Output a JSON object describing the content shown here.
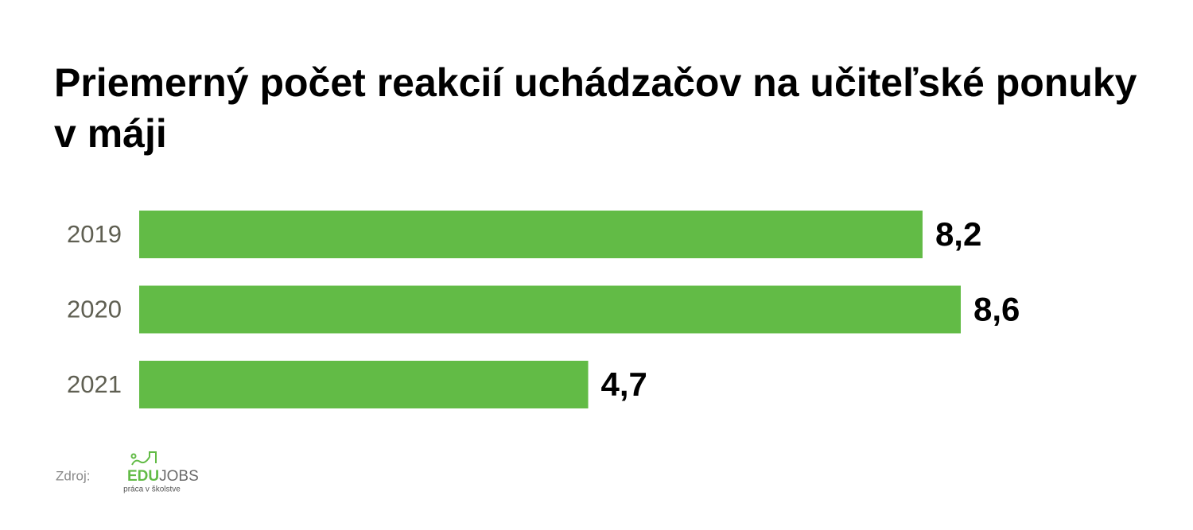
{
  "chart_data": {
    "type": "bar",
    "orientation": "horizontal",
    "title": "Priemerný počet reakcií uchádzačov na učiteľské ponuky v máji",
    "categories": [
      "2019",
      "2020",
      "2021"
    ],
    "values": [
      8.2,
      8.6,
      4.7
    ],
    "value_labels": [
      "8,2",
      "8,6",
      "4,7"
    ],
    "color": "#62bb46",
    "source": {
      "label": "Zdroj:",
      "logo": [
        "EDU",
        "JOBS"
      ],
      "tagline": "práca v školstve"
    }
  }
}
